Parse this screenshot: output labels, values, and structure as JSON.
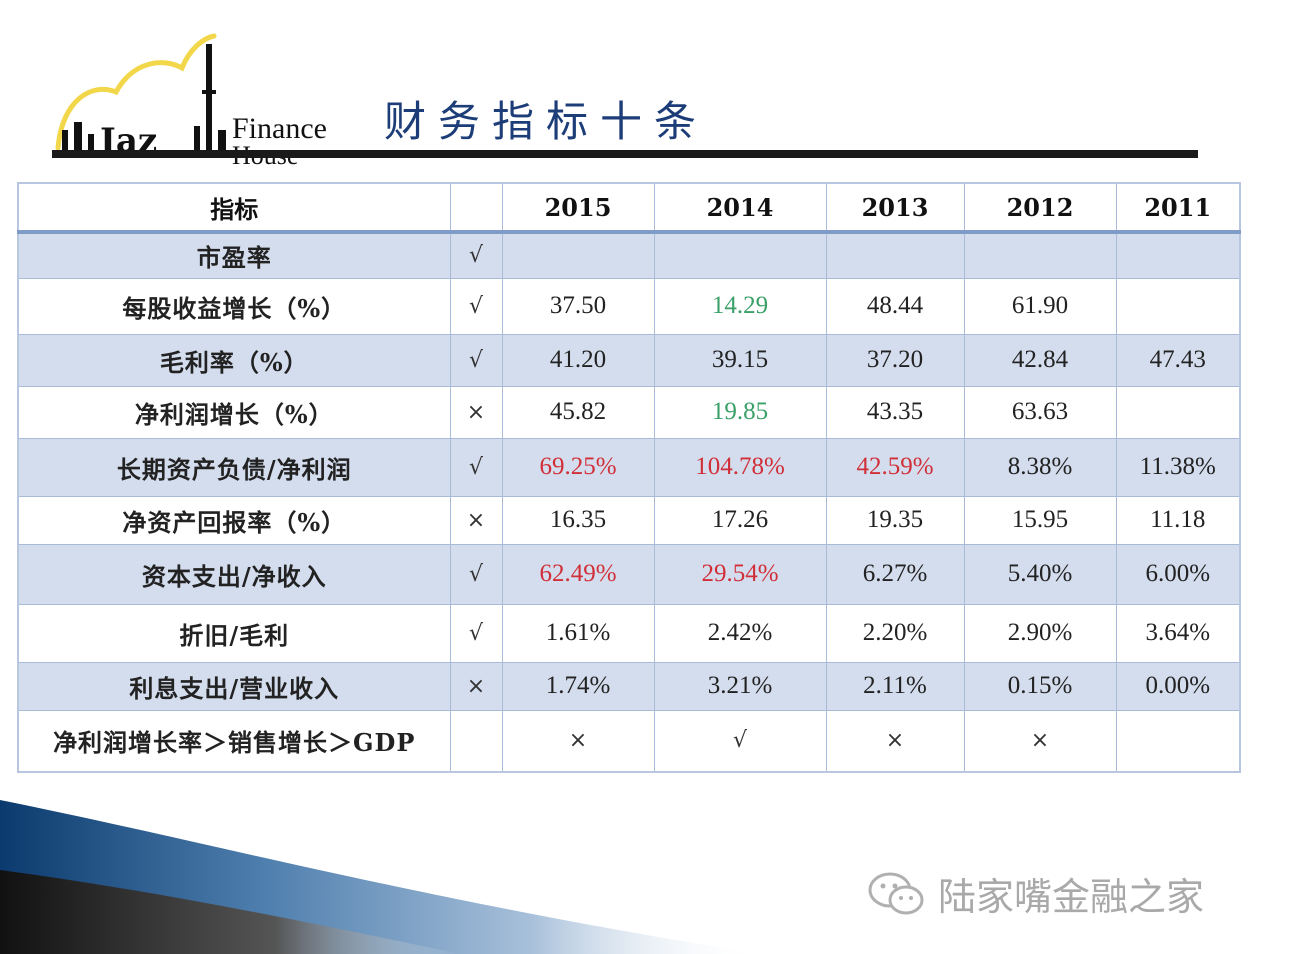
{
  "header": {
    "logo": {
      "icon": "lujiazui-skyline-logo",
      "text": "Finance",
      "text2": "House",
      "text3": "Iaz"
    },
    "title": "财务指标十条"
  },
  "table": {
    "columns": [
      "指标",
      "",
      "2015",
      "2014",
      "2013",
      "2012",
      "2011"
    ],
    "rows": [
      {
        "label": "市盈率",
        "mark": "√",
        "values": [
          "",
          "",
          "",
          "",
          ""
        ],
        "colors": [
          "",
          "",
          "",
          "",
          ""
        ]
      },
      {
        "label": "每股收益增长（%）",
        "mark": "√",
        "values": [
          "37.50",
          "14.29",
          "48.44",
          "61.90",
          ""
        ],
        "colors": [
          "",
          "green",
          "",
          "",
          ""
        ]
      },
      {
        "label": "毛利率（%）",
        "mark": "√",
        "values": [
          "41.20",
          "39.15",
          "37.20",
          "42.84",
          "47.43"
        ],
        "colors": [
          "",
          "",
          "",
          "",
          ""
        ]
      },
      {
        "label": "净利润增长（%）",
        "mark": "×",
        "values": [
          "45.82",
          "19.85",
          "43.35",
          "63.63",
          ""
        ],
        "colors": [
          "",
          "green",
          "",
          "",
          ""
        ]
      },
      {
        "label": "长期资产负债/净利润",
        "mark": "√",
        "values": [
          "69.25%",
          "104.78%",
          "42.59%",
          "8.38%",
          "11.38%"
        ],
        "colors": [
          "red",
          "red",
          "red",
          "",
          ""
        ]
      },
      {
        "label": "净资产回报率（%）",
        "mark": "×",
        "values": [
          "16.35",
          "17.26",
          "19.35",
          "15.95",
          "11.18"
        ],
        "colors": [
          "",
          "",
          "",
          "",
          ""
        ]
      },
      {
        "label": "资本支出/净收入",
        "mark": "√",
        "values": [
          "62.49%",
          "29.54%",
          "6.27%",
          "5.40%",
          "6.00%"
        ],
        "colors": [
          "red",
          "red",
          "",
          "",
          ""
        ]
      },
      {
        "label": "折旧/毛利",
        "mark": "√",
        "values": [
          "1.61%",
          "2.42%",
          "2.20%",
          "2.90%",
          "3.64%"
        ],
        "colors": [
          "",
          "",
          "",
          "",
          ""
        ]
      },
      {
        "label": "利息支出/营业收入",
        "mark": "×",
        "values": [
          "1.74%",
          "3.21%",
          "2.11%",
          "0.15%",
          "0.00%"
        ],
        "colors": [
          "",
          "",
          "",
          "",
          ""
        ]
      },
      {
        "label": "净利润增长率＞销售增长＞GDP",
        "mark": "",
        "values": [
          "×",
          "√",
          "×",
          "×",
          ""
        ],
        "colors": [
          "",
          "",
          "",
          "",
          ""
        ]
      }
    ]
  },
  "colors": {
    "red": "#d12f38",
    "green": "#3aa067",
    "shade": "#d4ddee",
    "title": "#1c3d78"
  },
  "watermark": {
    "icon": "wechat-icon",
    "text": "陆家嘴金融之家"
  }
}
